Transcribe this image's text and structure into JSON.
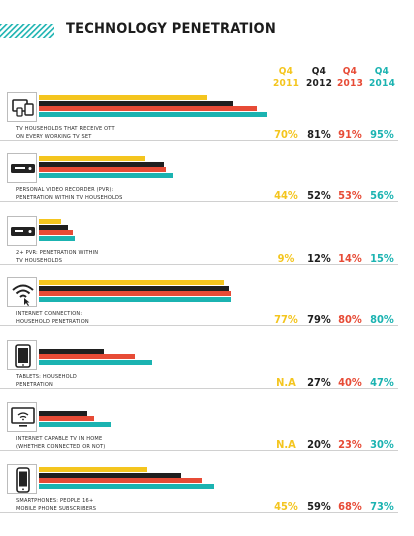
{
  "title": "TECHNOLOGY PENETRATION",
  "colors": {
    "2011": "#f4c51e",
    "2012": "#1f1f1f",
    "2013": "#e74b36",
    "2014": "#1bb3b1",
    "pattern": "#1bb3b1"
  },
  "columns": [
    {
      "quarter": "Q4",
      "year": "2011"
    },
    {
      "quarter": "Q4",
      "year": "2012"
    },
    {
      "quarter": "Q4",
      "year": "2013"
    },
    {
      "quarter": "Q4",
      "year": "2014"
    }
  ],
  "chart_data": {
    "type": "bar",
    "title": "TECHNOLOGY PENETRATION",
    "series_names": [
      "Q4 2011",
      "Q4 2012",
      "Q4 2013",
      "Q4 2014"
    ],
    "rows": [
      {
        "icon": "tv-tablet-phone-icon",
        "label_lines": [
          "TV HOUSEHOLDS THAT RECEIVE OTT",
          "ON EVERY WORKING TV SET"
        ],
        "values": [
          70,
          81,
          91,
          95
        ],
        "value_labels": [
          "70%",
          "81%",
          "91%",
          "95%"
        ]
      },
      {
        "icon": "pvr-icon",
        "label_lines": [
          "PERSONAL VIDEO RECORDER (PVR):",
          "PENETRATION WITHIN TV HOUSEHOLDS"
        ],
        "values": [
          44,
          52,
          53,
          56
        ],
        "value_labels": [
          "44%",
          "52%",
          "53%",
          "56%"
        ]
      },
      {
        "icon": "multi-pvr-icon",
        "label_lines": [
          "2+ PVR: PENETRATION WITHIN",
          "TV HOUSEHOLDS"
        ],
        "values": [
          9,
          12,
          14,
          15
        ],
        "value_labels": [
          "9%",
          "12%",
          "14%",
          "15%"
        ]
      },
      {
        "icon": "wifi-icon",
        "label_lines": [
          "INTERNET CONNECTION:",
          "HOUSEHOLD PENETRATION"
        ],
        "values": [
          77,
          79,
          80,
          80
        ],
        "value_labels": [
          "77%",
          "79%",
          "80%",
          "80%"
        ]
      },
      {
        "icon": "tablet-icon",
        "label_lines": [
          "TABLETS: HOUSEHOLD",
          "PENETRATION"
        ],
        "values": [
          null,
          27,
          40,
          47
        ],
        "value_labels": [
          "N.A",
          "27%",
          "40%",
          "47%"
        ]
      },
      {
        "icon": "internet-tv-icon",
        "label_lines": [
          "INTERNET CAPABLE TV IN HOME",
          "(WHETHER CONNECTED OR NOT)"
        ],
        "values": [
          null,
          20,
          23,
          30
        ],
        "value_labels": [
          "N.A",
          "20%",
          "23%",
          "30%"
        ]
      },
      {
        "icon": "smartphone-icon",
        "label_lines": [
          "SMARTPHONES: PEOPLE 16+",
          "MOBILE PHONE SUBSCRIBERS"
        ],
        "values": [
          45,
          59,
          68,
          73
        ],
        "value_labels": [
          "45%",
          "59%",
          "68%",
          "73%"
        ]
      }
    ]
  }
}
